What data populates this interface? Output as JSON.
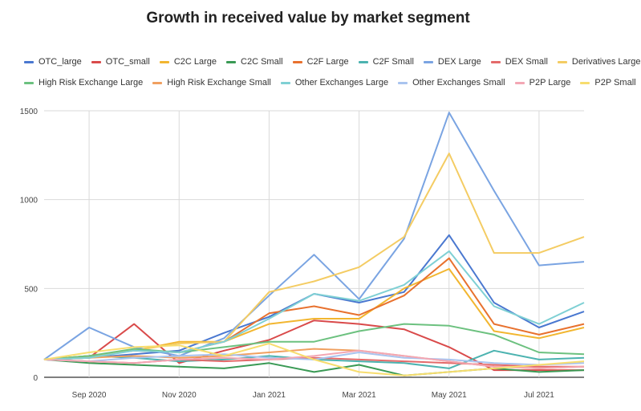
{
  "chart_data": {
    "type": "line",
    "title": "Growth in received value by market segment",
    "xlabel": "",
    "ylabel": "",
    "x": [
      "2020-08",
      "2020-09",
      "2020-10",
      "2020-11",
      "2020-12",
      "2021-01",
      "2021-02",
      "2021-03",
      "2021-04",
      "2021-05",
      "2021-06",
      "2021-07",
      "2021-08"
    ],
    "x_tick_labels": [
      {
        "x": "2020-09",
        "label": "Sep 2020"
      },
      {
        "x": "2020-11",
        "label": "Nov 2020"
      },
      {
        "x": "2021-01",
        "label": "Jan 2021"
      },
      {
        "x": "2021-03",
        "label": "Mar 2021"
      },
      {
        "x": "2021-05",
        "label": "May 2021"
      },
      {
        "x": "2021-07",
        "label": "Jul 2021"
      }
    ],
    "y_ticks": [
      0,
      500,
      1000,
      1500
    ],
    "ylim": [
      0,
      1500
    ],
    "grid": true,
    "legend_position": "top",
    "series": [
      {
        "name": "OTC_large",
        "color": "#4a78d0",
        "values": [
          100,
          110,
          130,
          150,
          250,
          340,
          470,
          420,
          480,
          800,
          420,
          280,
          370
        ]
      },
      {
        "name": "OTC_small",
        "color": "#d94a4a",
        "values": [
          100,
          110,
          300,
          80,
          150,
          210,
          320,
          300,
          270,
          170,
          40,
          40,
          40
        ]
      },
      {
        "name": "C2C Large",
        "color": "#f2b630",
        "values": [
          100,
          120,
          150,
          200,
          200,
          300,
          330,
          330,
          500,
          610,
          260,
          220,
          280
        ]
      },
      {
        "name": "C2C Small",
        "color": "#3a9a55",
        "values": [
          100,
          80,
          70,
          60,
          50,
          80,
          30,
          70,
          10,
          30,
          50,
          30,
          40
        ]
      },
      {
        "name": "C2F Large",
        "color": "#e8712e",
        "values": [
          100,
          120,
          150,
          140,
          200,
          360,
          400,
          350,
          460,
          670,
          300,
          240,
          300
        ]
      },
      {
        "name": "C2F Small",
        "color": "#4cb3b0",
        "values": [
          100,
          120,
          110,
          90,
          100,
          120,
          100,
          90,
          80,
          50,
          150,
          100,
          110
        ]
      },
      {
        "name": "DEX Large",
        "color": "#7aa4e2",
        "values": [
          100,
          280,
          170,
          120,
          220,
          460,
          690,
          440,
          780,
          1490,
          1050,
          630,
          650
        ]
      },
      {
        "name": "DEX Small",
        "color": "#e46a6a",
        "values": [
          100,
          90,
          80,
          100,
          90,
          100,
          110,
          100,
          90,
          80,
          70,
          60,
          60
        ]
      },
      {
        "name": "Derivatives Large",
        "color": "#f4cc63",
        "values": [
          100,
          120,
          150,
          190,
          200,
          480,
          540,
          620,
          790,
          1260,
          700,
          700,
          790
        ]
      },
      {
        "name": "High Risk Exchange Large",
        "color": "#6cc17f",
        "values": [
          100,
          120,
          160,
          140,
          170,
          200,
          200,
          260,
          300,
          290,
          240,
          140,
          130
        ]
      },
      {
        "name": "High Risk Exchange Small",
        "color": "#f0a060",
        "values": [
          100,
          110,
          120,
          110,
          120,
          140,
          160,
          150,
          120,
          90,
          60,
          50,
          60
        ]
      },
      {
        "name": "Other Exchanges Large",
        "color": "#7fd0d4",
        "values": [
          100,
          110,
          150,
          140,
          200,
          330,
          470,
          430,
          520,
          710,
          400,
          300,
          420
        ]
      },
      {
        "name": "Other Exchanges Small",
        "color": "#a9c4ef",
        "values": [
          100,
          90,
          110,
          120,
          130,
          110,
          100,
          140,
          110,
          100,
          80,
          70,
          80
        ]
      },
      {
        "name": "P2P Large",
        "color": "#f3a7b4",
        "values": [
          100,
          90,
          80,
          100,
          110,
          100,
          120,
          150,
          120,
          90,
          60,
          50,
          60
        ]
      },
      {
        "name": "P2P Small",
        "color": "#f7dd6e",
        "values": [
          100,
          140,
          170,
          180,
          120,
          190,
          100,
          30,
          10,
          30,
          50,
          70,
          90
        ]
      }
    ]
  }
}
